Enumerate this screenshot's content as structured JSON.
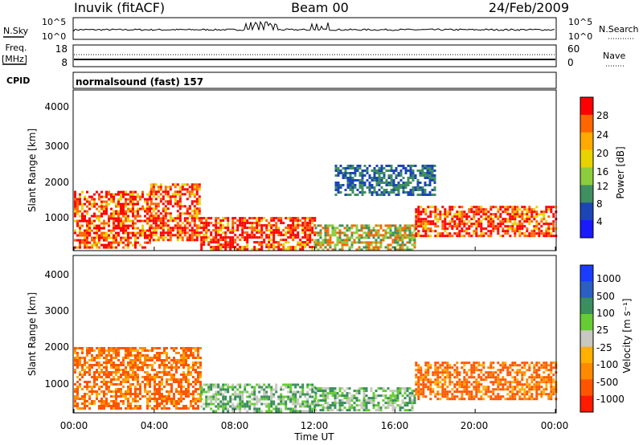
{
  "header": {
    "station": "Inuvik (fitACF)",
    "beam": "Beam 00",
    "date": "24/Feb/2009"
  },
  "nsky_panel": {
    "left_label": "N.Sky",
    "left_ticks": [
      "10^5",
      "10^0"
    ],
    "right_ticks": [
      "10^5",
      "10^0"
    ],
    "right_label": "N.Search"
  },
  "freq_panel": {
    "left_label_1": "Freq.",
    "left_label_2": "[MHz]",
    "left_ticks": [
      "18",
      "8"
    ],
    "right_ticks": [
      "60",
      "0"
    ],
    "right_label": "Nave"
  },
  "cpid_panel": {
    "left_label": "CPID",
    "text": "normalsound (fast) 157"
  },
  "x_axis": {
    "ticks": [
      "00:00",
      "04:00",
      "08:00",
      "12:00",
      "16:00",
      "20:00",
      "00:00"
    ],
    "label": "Time UT"
  },
  "power_panel": {
    "ylabel": "Slant Range [km]",
    "yticks": [
      "4000",
      "3000",
      "2000",
      "1000"
    ],
    "colorbar_label": "Power [dB]",
    "colorbar_ticks": [
      "28",
      "24",
      "20",
      "16",
      "12",
      "8",
      "4"
    ],
    "colorbar_colors": [
      "#ff0000",
      "#ff6600",
      "#ffaa00",
      "#e8d200",
      "#8dcc3d",
      "#3f8f5f",
      "#1c46b4",
      "#1a1aff"
    ]
  },
  "velocity_panel": {
    "ylabel": "Slant Range [km]",
    "yticks": [
      "4000",
      "3000",
      "2000",
      "1000"
    ],
    "colorbar_label": "Velocity [m s⁻¹]",
    "colorbar_ticks": [
      "1000",
      "500",
      "100",
      "25",
      "-25",
      "-100",
      "-500",
      "-1000"
    ],
    "colorbar_colors": [
      "#1a3cff",
      "#2b5fc2",
      "#3a8f5c",
      "#66cc33",
      "#c8c8c0",
      "#ffb000",
      "#ff8a00",
      "#ff5500",
      "#ff1a00"
    ]
  },
  "chart_data": [
    {
      "type": "line",
      "title": "N.Sky",
      "x_range_hours": [
        0,
        24
      ],
      "y_scale": "log",
      "ylim": [
        1,
        100000
      ]
    },
    {
      "type": "line",
      "title": "Freq. [MHz]",
      "x_range_hours": [
        0,
        24
      ],
      "ylim": [
        8,
        18
      ],
      "secondary_ylim": [
        0,
        60
      ]
    },
    {
      "type": "heatmap",
      "title": "Power [dB]",
      "xlabel": "Time UT",
      "ylabel": "Slant Range [km]",
      "x_range_hours": [
        0,
        24
      ],
      "ylim": [
        200,
        4500
      ],
      "colorbar_range": [
        0,
        30
      ],
      "echo_regions": [
        {
          "t0": 0.0,
          "t1": 3.8,
          "r0": 300,
          "r1": 1800,
          "level": "high"
        },
        {
          "t0": 3.8,
          "t1": 6.3,
          "r0": 500,
          "r1": 2000,
          "level": "high"
        },
        {
          "t0": 6.3,
          "t1": 12.0,
          "r0": 250,
          "r1": 1100,
          "level": "high"
        },
        {
          "t0": 12.0,
          "t1": 17.0,
          "r0": 250,
          "r1": 900,
          "level": "mid"
        },
        {
          "t0": 17.0,
          "t1": 24.0,
          "r0": 600,
          "r1": 1400,
          "level": "high"
        },
        {
          "t0": 13.0,
          "t1": 18.0,
          "r0": 1700,
          "r1": 2500,
          "level": "low"
        }
      ]
    },
    {
      "type": "heatmap",
      "title": "Velocity [m s⁻¹]",
      "xlabel": "Time UT",
      "ylabel": "Slant Range [km]",
      "x_range_hours": [
        0,
        24
      ],
      "ylim": [
        200,
        4500
      ],
      "colorbar_range": [
        -1000,
        1000
      ],
      "echo_regions": [
        {
          "t0": 0.0,
          "t1": 6.3,
          "r0": 300,
          "r1": 2000,
          "velocity": -300
        },
        {
          "t0": 6.3,
          "t1": 12.0,
          "r0": 250,
          "r1": 1000,
          "velocity": 80
        },
        {
          "t0": 12.0,
          "t1": 17.0,
          "r0": 250,
          "r1": 900,
          "velocity": 60
        },
        {
          "t0": 17.0,
          "t1": 24.0,
          "r0": 600,
          "r1": 1600,
          "velocity": -400
        }
      ]
    }
  ]
}
